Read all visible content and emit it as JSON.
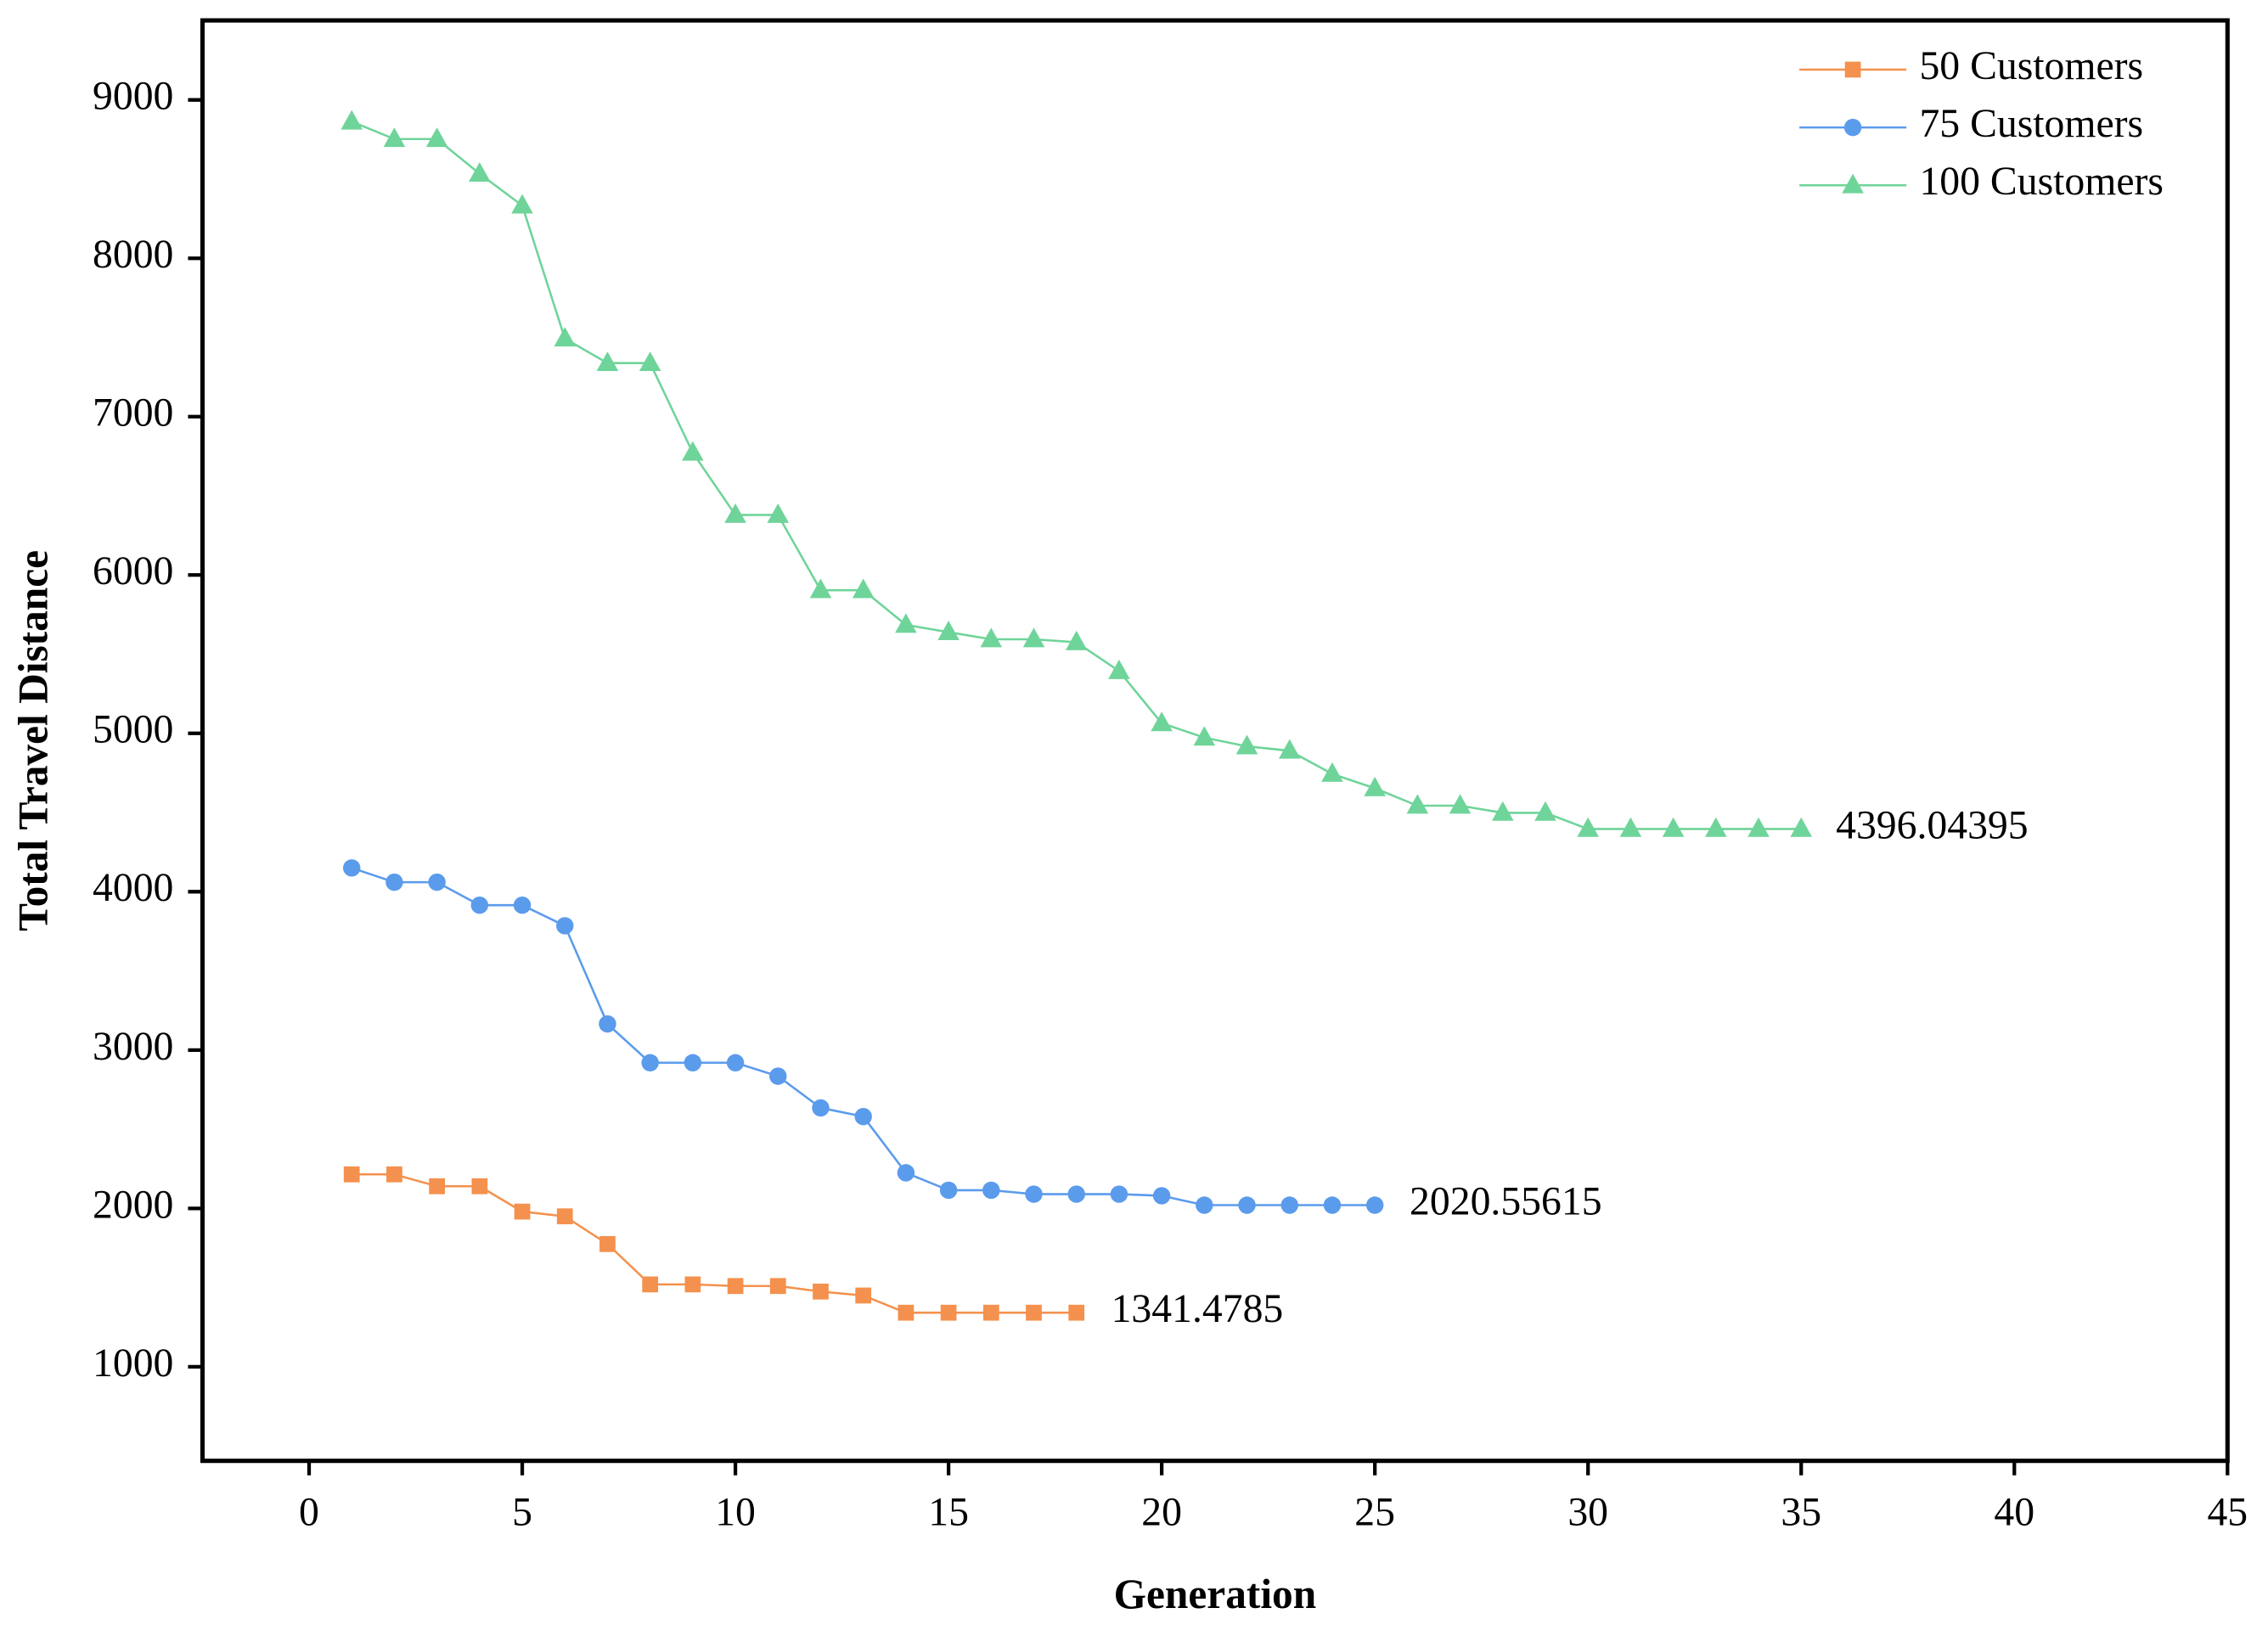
{
  "chart_data": {
    "type": "line",
    "x_label": "Generation",
    "y_label": "Total Travel Distance",
    "xlim": [
      -2.5,
      45
    ],
    "xticks": [
      0,
      5,
      10,
      15,
      20,
      25,
      30,
      35,
      40,
      45
    ],
    "ylim": [
      406,
      9502
    ],
    "yticks": [
      1000,
      2000,
      3000,
      4000,
      5000,
      6000,
      7000,
      8000,
      9000
    ],
    "grid": false,
    "legend": "upper right",
    "end_labels": true,
    "series": [
      {
        "name": "50 Customers",
        "color": "#f4914e",
        "marker": "square",
        "x": [
          1,
          2,
          3,
          4,
          5,
          6,
          7,
          8,
          9,
          10,
          11,
          12,
          13,
          14,
          15,
          16,
          17,
          18
        ],
        "values": [
          2215,
          2215,
          2140,
          2140,
          1980,
          1950,
          1775,
          1520,
          1520,
          1510,
          1510,
          1475,
          1450,
          1341.4785,
          1341.4785,
          1341.4785,
          1341.4785,
          1341.4785
        ]
      },
      {
        "name": "75 Customers",
        "color": "#5b9bec",
        "marker": "circle",
        "x": [
          1,
          2,
          3,
          4,
          5,
          6,
          7,
          8,
          9,
          10,
          11,
          12,
          13,
          14,
          15,
          16,
          17,
          18,
          19,
          20,
          21,
          22,
          23,
          24,
          25
        ],
        "values": [
          4150,
          4060,
          4060,
          3915,
          3915,
          3785,
          3165,
          2920,
          2920,
          2920,
          2835,
          2635,
          2580,
          2225,
          2115,
          2115,
          2090,
          2090,
          2090,
          2080,
          2020.55615,
          2020.55615,
          2020.55615,
          2020.55615,
          2020.55615
        ]
      },
      {
        "name": "100 Customers",
        "color": "#6fd49a",
        "marker": "triangle",
        "x": [
          1,
          2,
          3,
          4,
          5,
          6,
          7,
          8,
          9,
          10,
          11,
          12,
          13,
          14,
          15,
          16,
          17,
          18,
          19,
          20,
          21,
          22,
          23,
          24,
          25,
          26,
          27,
          28,
          29,
          30,
          31,
          32,
          33,
          34,
          35
        ],
        "values": [
          8863,
          8753,
          8753,
          8534,
          8333,
          7493,
          7338,
          7338,
          6772,
          6379,
          6379,
          5904,
          5904,
          5685,
          5639,
          5594,
          5594,
          5575,
          5393,
          5064,
          4973,
          4918,
          4890,
          4744,
          4653,
          4543,
          4543,
          4498,
          4498,
          4396.04395,
          4396.04395,
          4396.04395,
          4396.04395,
          4396.04395,
          4396.04395
        ]
      }
    ]
  }
}
